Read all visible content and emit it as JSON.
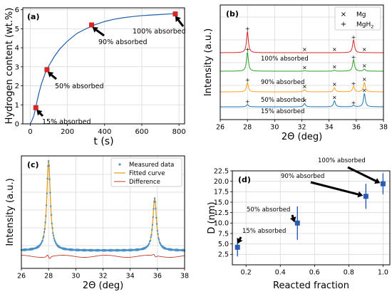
{
  "chart_data": [
    {
      "panel": "(a)",
      "type": "line",
      "xlabel": "t (s)",
      "ylabel": "Hydrogen content (wt.%)",
      "xlim": [
        -40,
        830
      ],
      "ylim": [
        0,
        6.1
      ],
      "xticks": [
        0,
        200,
        400,
        600,
        800
      ],
      "yticks": [
        0,
        1,
        2,
        3,
        4,
        5,
        6
      ],
      "grid": true,
      "curve": {
        "t": [
          0,
          10,
          20,
          30,
          45,
          60,
          80,
          100,
          130,
          160,
          200,
          250,
          300,
          350,
          400,
          450,
          500,
          550,
          600,
          650,
          700,
          750,
          790
        ],
        "h": [
          0.0,
          0.2,
          0.45,
          0.9,
          1.55,
          2.1,
          2.65,
          3.05,
          3.55,
          3.95,
          4.35,
          4.75,
          5.0,
          5.22,
          5.38,
          5.5,
          5.58,
          5.64,
          5.69,
          5.72,
          5.75,
          5.78,
          5.8
        ]
      },
      "markers": [
        {
          "t": 30,
          "h": 0.85
        },
        {
          "t": 90,
          "h": 2.85
        },
        {
          "t": 330,
          "h": 5.2
        },
        {
          "t": 780,
          "h": 5.78
        }
      ],
      "annotations": [
        {
          "text": "15% absorbed",
          "t": 30,
          "h": 0.85
        },
        {
          "text": "50% absorbed",
          "t": 90,
          "h": 2.85
        },
        {
          "text": "90% absorbed",
          "t": 330,
          "h": 5.2
        },
        {
          "text": "100% absorbed",
          "t": 780,
          "h": 5.78
        }
      ],
      "colors": {
        "line": "#1f5fa8",
        "marker": "#d62728"
      }
    },
    {
      "panel": "(b)",
      "type": "line",
      "xlabel": "2Θ (deg)",
      "ylabel": "Intensity (a.u.)",
      "xlim": [
        26,
        38
      ],
      "xticks": [
        26,
        28,
        30,
        32,
        34,
        36,
        38
      ],
      "grid": true,
      "legend": {
        "placement": "top-right",
        "entries": [
          {
            "symbol": "×",
            "label": "Mg"
          },
          {
            "symbol": "+",
            "label": "MgH",
            "sub": "2"
          }
        ]
      },
      "series": [
        {
          "name": "15% absorbed",
          "color": "#1f77b4"
        },
        {
          "name": "50% absorbed",
          "color": "#ff9f1c"
        },
        {
          "name": "90% absorbed",
          "color": "#2ca02c"
        },
        {
          "name": "100% absorbed",
          "color": "#d62728"
        }
      ],
      "peaks_MgH2": [
        28.0,
        35.8
      ],
      "peaks_Mg": [
        32.2,
        34.4,
        36.6
      ],
      "mg_pattern_relative": [
        0.25,
        0.45,
        1.0
      ],
      "mgh2_pattern_relative": [
        1.0,
        0.6
      ],
      "mgh2_fraction": [
        0.15,
        0.5,
        0.9,
        1.0
      ],
      "mg_markers_shown": [
        [
          32.2,
          34.4,
          36.6
        ],
        [
          32.2,
          34.4,
          36.6
        ],
        [
          32.2,
          34.4,
          36.6
        ],
        [
          32.2,
          34.4,
          36.6
        ]
      ],
      "mgh2_markers_shown": [
        [
          28.0,
          35.8
        ],
        [
          28.0,
          35.8
        ],
        [
          28.0,
          35.8
        ],
        [
          28.0,
          35.8
        ]
      ]
    },
    {
      "panel": "(c)",
      "type": "line",
      "xlabel": "2Θ (deg)",
      "ylabel": "Intensity (a.u.)",
      "xlim": [
        26,
        38
      ],
      "xticks": [
        26,
        28,
        30,
        32,
        34,
        36,
        38
      ],
      "grid": true,
      "legend": {
        "placement": "top-right",
        "entries": [
          {
            "label": "Measured data",
            "color": "#4a90c8",
            "kind": "points"
          },
          {
            "label": "Fitted curve",
            "color": "#e0a020",
            "kind": "line"
          },
          {
            "label": "Difference",
            "color": "#c0392b",
            "kind": "line"
          }
        ]
      },
      "peaks": [
        {
          "center": 28.0,
          "height": 1.0,
          "width": 0.16
        },
        {
          "center": 35.8,
          "height": 0.58,
          "width": 0.16
        }
      ],
      "baseline": 0.03
    },
    {
      "panel": "(d)",
      "type": "scatter",
      "xlabel": "Reacted fraction",
      "ylabel": "D (nm)",
      "xlim": [
        0.12,
        1.04
      ],
      "ylim": [
        0,
        22.5
      ],
      "xticks": [
        0.2,
        0.4,
        0.6,
        0.8,
        1.0
      ],
      "yticks": [
        2.5,
        5.0,
        7.5,
        10.0,
        12.5,
        15.0,
        17.5,
        20.0,
        22.5
      ],
      "grid": true,
      "points": [
        {
          "x": 0.15,
          "y": 4.2,
          "yerr": 2.2,
          "label": "15% absorbed"
        },
        {
          "x": 0.5,
          "y": 10.0,
          "yerr": 4.0,
          "label": "50% absorbed"
        },
        {
          "x": 0.9,
          "y": 16.4,
          "yerr": 3.0,
          "label": "90% absorbed"
        },
        {
          "x": 1.0,
          "y": 19.4,
          "yerr": 2.5,
          "label": "100% absorbed"
        }
      ],
      "colors": {
        "marker": "#2a5db0"
      }
    }
  ]
}
